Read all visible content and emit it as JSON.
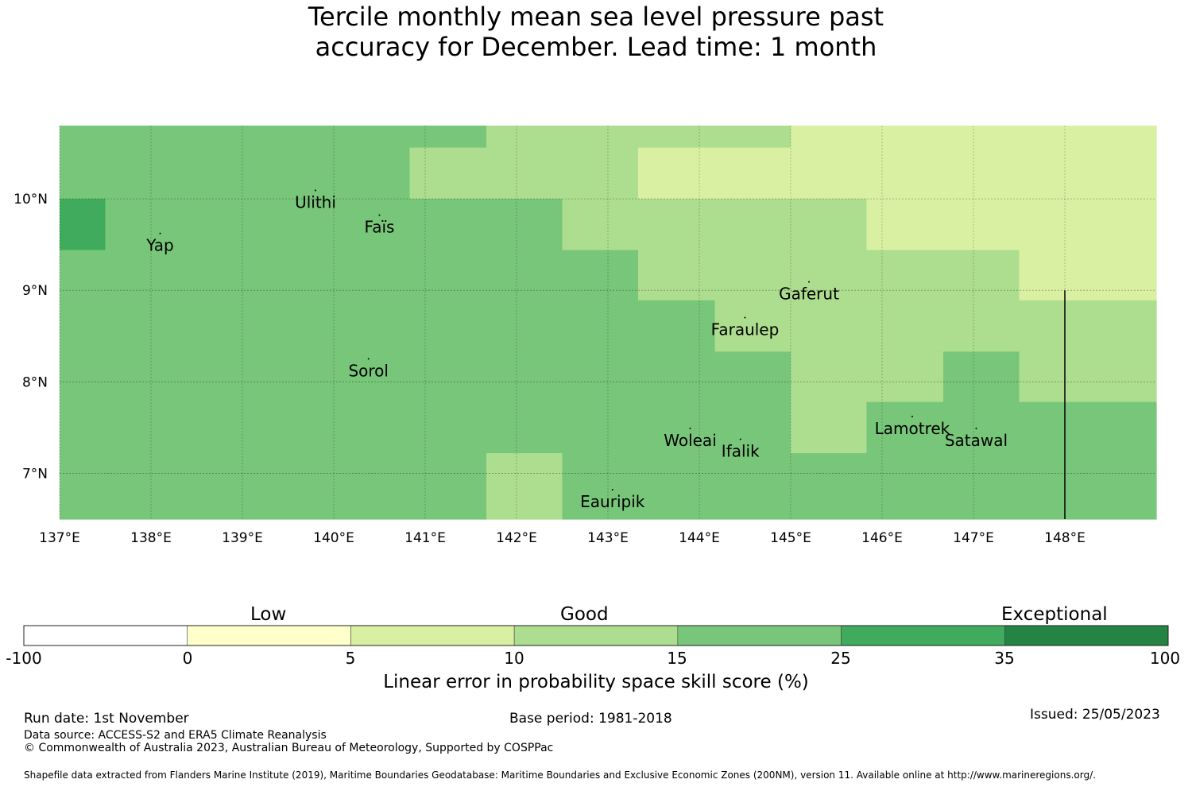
{
  "title": {
    "line1": "Tercile monthly mean sea level pressure past",
    "line2": "accuracy for December. Lead time: 1 month"
  },
  "map": {
    "lon_range": [
      137.0,
      149.0
    ],
    "lat_range": [
      6.5,
      10.8
    ],
    "lon_ticks": [
      "137°E",
      "138°E",
      "139°E",
      "140°E",
      "141°E",
      "142°E",
      "143°E",
      "144°E",
      "145°E",
      "146°E",
      "147°E",
      "148°E"
    ],
    "lat_ticks": [
      "10°N",
      "9°N",
      "8°N",
      "7°N"
    ],
    "cells": [
      {
        "lon0": 137.0,
        "lon1": 141.67,
        "lat0": 10.56,
        "lat1": 10.8,
        "cls": 4
      },
      {
        "lon0": 141.67,
        "lon1": 145.0,
        "lat0": 10.56,
        "lat1": 10.8,
        "cls": 3
      },
      {
        "lon0": 145.0,
        "lon1": 149.0,
        "lat0": 10.56,
        "lat1": 10.8,
        "cls": 2
      },
      {
        "lon0": 137.0,
        "lon1": 140.83,
        "lat0": 10.0,
        "lat1": 10.56,
        "cls": 4
      },
      {
        "lon0": 140.83,
        "lon1": 143.33,
        "lat0": 10.0,
        "lat1": 10.56,
        "cls": 3
      },
      {
        "lon0": 143.33,
        "lon1": 149.0,
        "lat0": 10.0,
        "lat1": 10.56,
        "cls": 2
      },
      {
        "lon0": 137.0,
        "lon1": 137.5,
        "lat0": 9.44,
        "lat1": 10.0,
        "cls": 5
      },
      {
        "lon0": 137.5,
        "lon1": 142.5,
        "lat0": 9.44,
        "lat1": 10.0,
        "cls": 4
      },
      {
        "lon0": 142.5,
        "lon1": 145.83,
        "lat0": 9.44,
        "lat1": 10.0,
        "cls": 3
      },
      {
        "lon0": 145.83,
        "lon1": 149.0,
        "lat0": 9.44,
        "lat1": 10.0,
        "cls": 2
      },
      {
        "lon0": 137.0,
        "lon1": 143.33,
        "lat0": 8.89,
        "lat1": 9.44,
        "cls": 4
      },
      {
        "lon0": 143.33,
        "lon1": 147.5,
        "lat0": 8.89,
        "lat1": 9.44,
        "cls": 3
      },
      {
        "lon0": 147.5,
        "lon1": 149.0,
        "lat0": 8.89,
        "lat1": 9.44,
        "cls": 2
      },
      {
        "lon0": 137.0,
        "lon1": 144.17,
        "lat0": 8.33,
        "lat1": 8.89,
        "cls": 4
      },
      {
        "lon0": 144.17,
        "lon1": 149.0,
        "lat0": 8.33,
        "lat1": 8.89,
        "cls": 3
      },
      {
        "lon0": 137.0,
        "lon1": 145.0,
        "lat0": 7.78,
        "lat1": 8.33,
        "cls": 4
      },
      {
        "lon0": 145.0,
        "lon1": 146.67,
        "lat0": 7.78,
        "lat1": 8.33,
        "cls": 3
      },
      {
        "lon0": 146.67,
        "lon1": 147.5,
        "lat0": 7.78,
        "lat1": 8.33,
        "cls": 4
      },
      {
        "lon0": 147.5,
        "lon1": 149.0,
        "lat0": 7.78,
        "lat1": 8.33,
        "cls": 3
      },
      {
        "lon0": 137.0,
        "lon1": 145.0,
        "lat0": 7.22,
        "lat1": 7.78,
        "cls": 4
      },
      {
        "lon0": 145.0,
        "lon1": 145.83,
        "lat0": 7.22,
        "lat1": 7.78,
        "cls": 3
      },
      {
        "lon0": 145.83,
        "lon1": 149.0,
        "lat0": 7.22,
        "lat1": 7.78,
        "cls": 4
      },
      {
        "lon0": 137.0,
        "lon1": 141.67,
        "lat0": 6.5,
        "lat1": 7.22,
        "cls": 4
      },
      {
        "lon0": 141.67,
        "lon1": 142.5,
        "lat0": 6.5,
        "lat1": 7.22,
        "cls": 3
      },
      {
        "lon0": 142.5,
        "lon1": 149.0,
        "lat0": 6.5,
        "lat1": 7.22,
        "cls": 4
      }
    ],
    "places": [
      {
        "name": "Ulithi",
        "lon": 139.8,
        "lat": 9.97
      },
      {
        "name": "Faïs",
        "lon": 140.5,
        "lat": 9.7
      },
      {
        "name": "Yap",
        "lon": 138.1,
        "lat": 9.5
      },
      {
        "name": "Gaferut",
        "lon": 145.2,
        "lat": 8.97
      },
      {
        "name": "Faraulep",
        "lon": 144.5,
        "lat": 8.58
      },
      {
        "name": "Sorol",
        "lon": 140.38,
        "lat": 8.13
      },
      {
        "name": "Woleai",
        "lon": 143.9,
        "lat": 7.37
      },
      {
        "name": "Lamotrek",
        "lon": 146.33,
        "lat": 7.5
      },
      {
        "name": "Satawal",
        "lon": 147.03,
        "lat": 7.37
      },
      {
        "name": "Ifalik",
        "lon": 144.45,
        "lat": 7.25
      },
      {
        "name": "Eauripik",
        "lon": 143.05,
        "lat": 6.7
      }
    ],
    "boundary_line": {
      "lon": 148.0,
      "lat_from": 6.5,
      "lat_to": 9.0
    }
  },
  "colorbar": {
    "colors": [
      "#ffffff",
      "#ffffcc",
      "#d9f0a3",
      "#addd8e",
      "#78c679",
      "#41ab5d",
      "#238443"
    ],
    "tick_labels": [
      "-100",
      "0",
      "5",
      "10",
      "15",
      "25",
      "35",
      "100"
    ],
    "category_labels": {
      "low": "Low",
      "good": "Good",
      "exceptional": "Exceptional"
    },
    "title": "Linear error in probability space skill score (%)"
  },
  "footer": {
    "run_date": "Run date: 1st November",
    "base_period": "Base period: 1981-2018",
    "issued": "Issued: 25/05/2023",
    "data_source": "Data source: ACCESS-S2 and ERA5 Climate Reanalysis",
    "copyright": "© Commonwealth of Australia 2023, Australian Bureau of Meteorology, Supported by COSPPac",
    "shapefile": "Shapefile data extracted from Flanders Marine Institute (2019), Maritime Boundaries Geodatabase: Maritime Boundaries and Exclusive Economic Zones (200NM), version 11. Available online at http://www.marineregions.org/."
  }
}
